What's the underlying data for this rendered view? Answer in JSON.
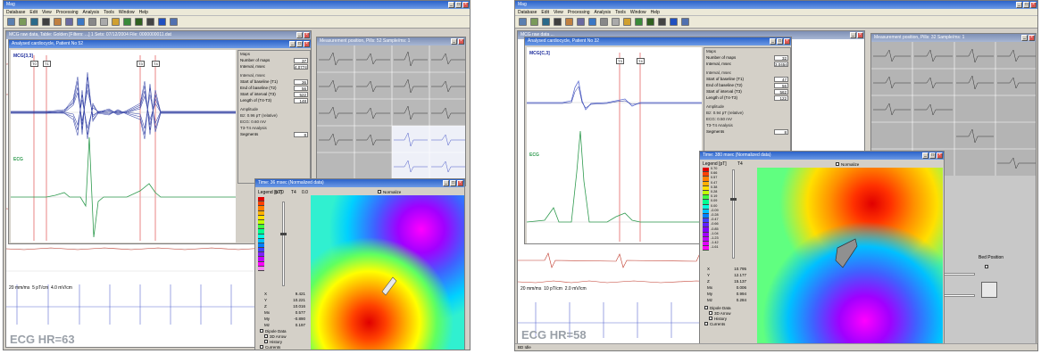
{
  "screenshot_left": {
    "app_title": "Mag",
    "menus": [
      "Database",
      "Edit",
      "View",
      "Processing",
      "Analysis",
      "Tools",
      "Window",
      "Help"
    ],
    "raw_window_title": "MCG raw data, Table: Golden [Filters: ...] 1 Sets: 07/12/2004 File: 0000000011.dat",
    "cardio_window_title": "Analysed cardiocycle, Patient No 52",
    "mcg_label": "MCG[3,3]",
    "ecg_label": "ECG",
    "markers": [
      "T0",
      "T1",
      "T2",
      "T3",
      "T4"
    ],
    "maps": {
      "heading": "Maps",
      "number_label": "Number of maps",
      "number_value": "37",
      "interval_label": "Interval, msec",
      "interval_value": "4.0774"
    },
    "interval": {
      "heading": "Interval, msec",
      "start_baseline_label": "Start of baseline (T1)",
      "start_baseline_value": "36",
      "end_baseline_label": "End of baseline (T2)",
      "end_baseline_value": "56",
      "start_interval_label": "Start of interval (T3)",
      "start_interval_value": "522",
      "length_label": "Length of (T4-T3)",
      "length_value": "148"
    },
    "amplitude": {
      "heading": "Amplitude",
      "bz_label": "Bz: 0.96 pT (relative)",
      "ecg_label": "ECG: 0.60 mV",
      "analysis_label": "T3-T4 Analysis",
      "segments_label": "Segments",
      "segments_value": "8"
    },
    "measurement_window_title": "Measurement position, Pills: 52 Sample/ms: 1",
    "map_window_title": "Time: 36 msec (Normalized data)",
    "legend_label": "Legend [pT]",
    "legend_top": "0.70",
    "legend_axis": [
      "T4",
      "0.0"
    ],
    "normalize_label": "Normalize",
    "readout": [
      {
        "k": "X",
        "v": "9.421"
      },
      {
        "k": "Y",
        "v": "10.221"
      },
      {
        "k": "Z",
        "v": "10.016"
      },
      {
        "k": "Mx",
        "v": "0.577"
      },
      {
        "k": "My",
        "v": "-0.890"
      },
      {
        "k": "Mz",
        "v": "0.197"
      }
    ],
    "options": [
      "Dipole Data",
      "3D Arrow",
      "History",
      "Currents"
    ],
    "scale_text": [
      "20 mm/ms",
      "5 pT/cm",
      "4.0 mV/cm"
    ],
    "hr_label": "ECG HR=63"
  },
  "screenshot_right": {
    "app_title": "Mag",
    "menus": [
      "Database",
      "Edit",
      "View",
      "Processing",
      "Analysis",
      "Tools",
      "Window",
      "Help"
    ],
    "raw_window_title": "MCG raw data ...",
    "cardio_window_title": "Analysed cardiocycle, Patient No 32",
    "mcg_label": "MCG[C,3]",
    "ecg_label": "ECG",
    "markers": [
      "T3",
      "T4"
    ],
    "maps": {
      "heading": "Maps",
      "number_label": "Number of maps",
      "number_value": "32",
      "interval_label": "Interval, msec",
      "interval_value": "3.0454"
    },
    "interval": {
      "heading": "Interval, msec",
      "start_baseline_label": "Start of baseline (T1)",
      "start_baseline_value": "47",
      "end_baseline_label": "End of baseline (T2)",
      "end_baseline_value": "56",
      "start_interval_label": "Start of interval (T3)",
      "start_interval_value": "562",
      "length_label": "Length of (T4-T3)",
      "length_value": "122"
    },
    "amplitude": {
      "heading": "Amplitude",
      "bz_label": "Bz: 0.94 pT (relative)",
      "ecg_label": "ECG: 0.50 mV",
      "analysis_label": "T3-T4 Analysis",
      "segments_label": "Segments",
      "segments_value": "8"
    },
    "measurement_window_title": "Measurement position, Pills: 32 Sample/ms: 1",
    "map_window_title": "Time: 380 msec (Normalized data)",
    "legend_label": "Legend [pT]",
    "legend_values": [
      "0.70",
      "0.66",
      "0.57",
      "0.47",
      "0.38",
      "0.28",
      "0.19",
      "0.09",
      "0.00",
      "-0.09",
      "-0.28",
      "-0.47",
      "-0.66",
      "-0.85",
      "-1.04",
      "-1.23",
      "-1.42",
      "-1.61"
    ],
    "legend_axis": [
      "T4"
    ],
    "normalize_label": "Normalize",
    "readout": [
      {
        "k": "X",
        "v": "10.795"
      },
      {
        "k": "Y",
        "v": "12.177"
      },
      {
        "k": "Z",
        "v": "15.137"
      },
      {
        "k": "Mx",
        "v": "0.006"
      },
      {
        "k": "My",
        "v": "0.994"
      },
      {
        "k": "Mz",
        "v": "0.284"
      }
    ],
    "options": [
      "Dipole Data",
      "3D Arrow",
      "History",
      "Currents"
    ],
    "side_labels": [
      "Bed Position"
    ],
    "scale_text": [
      "20 mm/ms",
      "10 pT/cm",
      "2.0 mV/cm"
    ],
    "hr_label": "ECG HR=58",
    "status_text": "BD  Idle"
  },
  "colors": {
    "title_active": "#2b62c9",
    "title_inactive": "#7d8fb5",
    "mcg_trace": "#1a2a9a",
    "ecg_trace": "#2e9a4e",
    "marker": "#e05050",
    "raw_trace": "#c0392b"
  }
}
